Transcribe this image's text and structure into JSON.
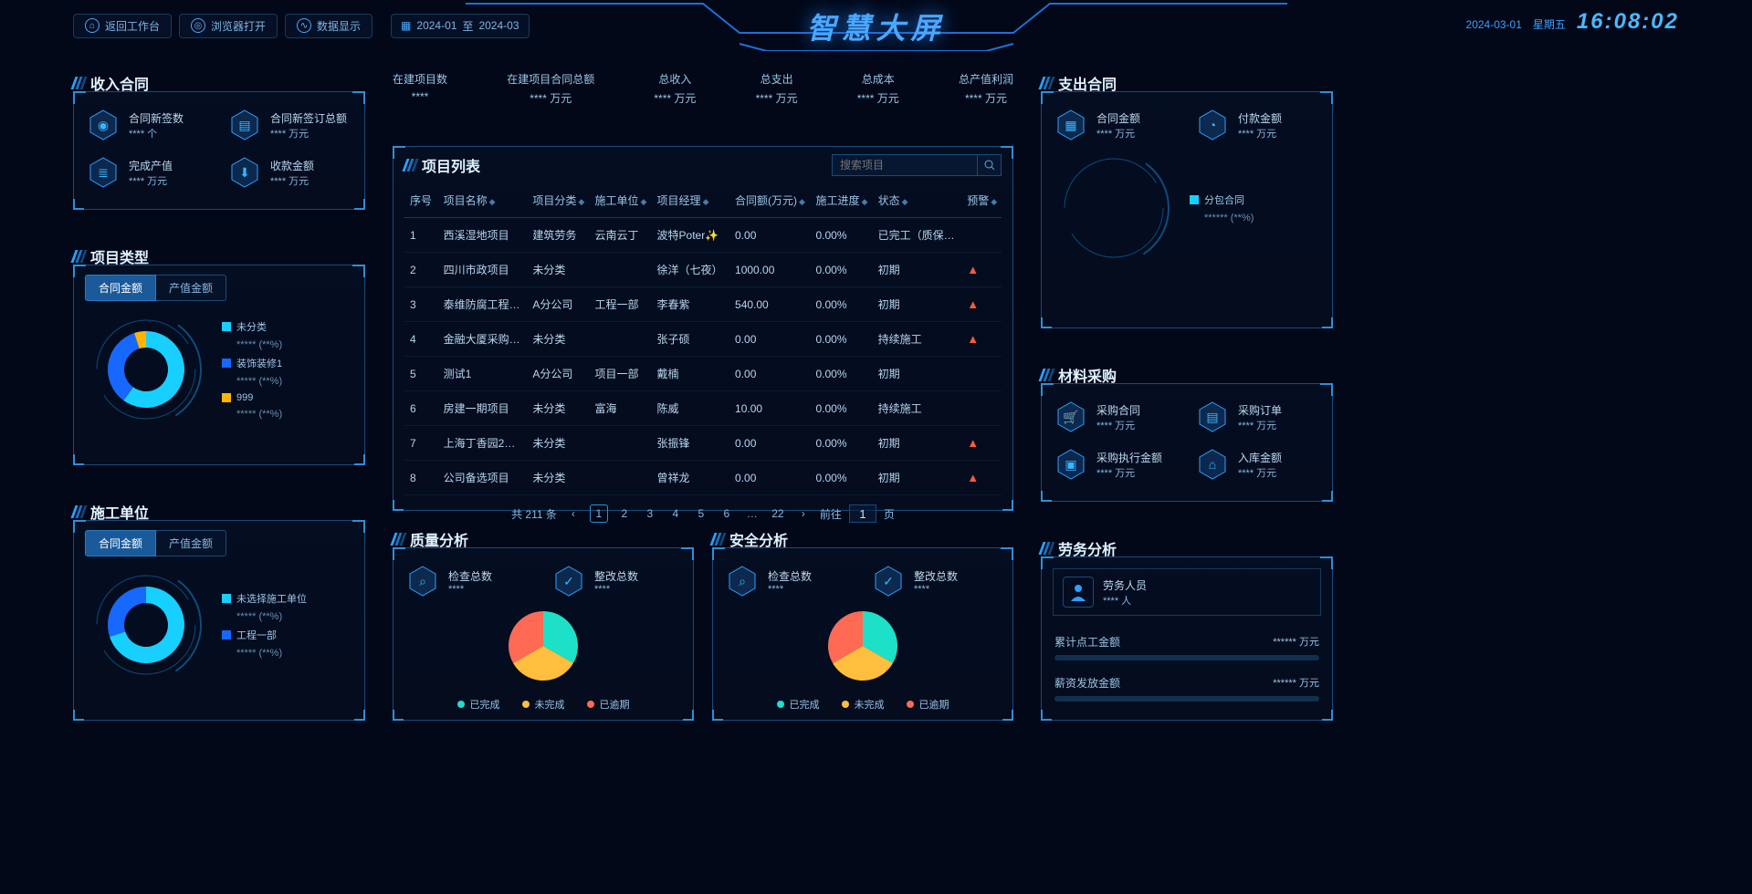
{
  "header": {
    "buttons": [
      {
        "icon": "home-icon",
        "label": "返回工作台"
      },
      {
        "icon": "globe-icon",
        "label": "浏览器打开"
      },
      {
        "icon": "data-icon",
        "label": "数据显示"
      }
    ],
    "date_from": "2024-01",
    "date_sep": "至",
    "date_to": "2024-03",
    "title": "智慧大屏",
    "date": "2024-03-01",
    "weekday": "星期五",
    "time": "16:08:02"
  },
  "summary_row": [
    {
      "label": "在建项目数",
      "value": "****"
    },
    {
      "label": "在建项目合同总额",
      "value": "**** 万元"
    },
    {
      "label": "总收入",
      "value": "**** 万元"
    },
    {
      "label": "总支出",
      "value": "**** 万元"
    },
    {
      "label": "总成本",
      "value": "**** 万元"
    },
    {
      "label": "总产值利润",
      "value": "**** 万元"
    }
  ],
  "income_panel": {
    "title": "收入合同",
    "tiles": [
      {
        "icon": "shield-icon",
        "label": "合同新签数",
        "value": "**** 个"
      },
      {
        "icon": "doc-icon",
        "label": "合同新签订总额",
        "value": "**** 万元"
      },
      {
        "icon": "stack-icon",
        "label": "完成产值",
        "value": "**** 万元"
      },
      {
        "icon": "download-icon",
        "label": "收款金额",
        "value": "**** 万元"
      }
    ]
  },
  "project_type_panel": {
    "title": "项目类型",
    "tabs": [
      "合同金额",
      "产值金额"
    ],
    "active_tab": 0,
    "donut": {
      "colors": [
        "#17d0ff",
        "#1668ff",
        "#ffb400"
      ],
      "values": [
        60,
        35,
        5
      ],
      "ring_color": "#0e4b7a",
      "inner_bg": "#051428"
    },
    "legend": [
      {
        "color": "#17d0ff",
        "label": "未分类",
        "sub": "*****  (**%)"
      },
      {
        "color": "#1668ff",
        "label": "装饰装修1",
        "sub": "*****  (**%)"
      },
      {
        "color": "#ffb400",
        "label": "999",
        "sub": "*****  (**%)"
      }
    ]
  },
  "construct_unit_panel": {
    "title": "施工单位",
    "tabs": [
      "合同金额",
      "产值金额"
    ],
    "active_tab": 0,
    "donut": {
      "colors": [
        "#17d0ff",
        "#1668ff"
      ],
      "values": [
        70,
        30
      ],
      "ring_color": "#0e4b7a",
      "inner_bg": "#051428"
    },
    "legend": [
      {
        "color": "#17d0ff",
        "label": "未选择施工单位",
        "sub": "*****  (**%)"
      },
      {
        "color": "#1668ff",
        "label": "工程一部",
        "sub": "*****  (**%)"
      }
    ]
  },
  "project_list": {
    "title": "项目列表",
    "search_placeholder": "搜索项目",
    "columns": [
      "序号",
      "项目名称",
      "项目分类",
      "施工单位",
      "项目经理",
      "合同额(万元)",
      "施工进度",
      "状态",
      "预警"
    ],
    "rows": [
      [
        "1",
        "西溪湿地项目",
        "建筑劳务",
        "云南云丁",
        "波特Poter✨",
        "0.00",
        "0.00%",
        "已完工（质保…",
        ""
      ],
      [
        "2",
        "四川市政项目",
        "未分类",
        "",
        "徐洋（七夜）",
        "1000.00",
        "0.00%",
        "初期",
        "warn"
      ],
      [
        "3",
        "泰维防腐工程…",
        "A分公司",
        "工程一部",
        "李春紫",
        "540.00",
        "0.00%",
        "初期",
        "warn"
      ],
      [
        "4",
        "金融大厦采购…",
        "未分类",
        "",
        "张子硕",
        "0.00",
        "0.00%",
        "持续施工",
        "warn"
      ],
      [
        "5",
        "测试1",
        "A分公司",
        "项目一部",
        "戴楠",
        "0.00",
        "0.00%",
        "初期",
        ""
      ],
      [
        "6",
        "房建一期项目",
        "未分类",
        "富海",
        "陈威",
        "10.00",
        "0.00%",
        "持续施工",
        ""
      ],
      [
        "7",
        "上海丁香园2…",
        "未分类",
        "",
        "张振锋",
        "0.00",
        "0.00%",
        "初期",
        "warn"
      ],
      [
        "8",
        "公司备选项目",
        "未分类",
        "",
        "曾祥龙",
        "0.00",
        "0.00%",
        "初期",
        "warn"
      ]
    ],
    "total_label": "共 211 条",
    "pages": [
      "1",
      "2",
      "3",
      "4",
      "5",
      "6",
      "…",
      "22"
    ],
    "current_page": "1",
    "goto_label_pre": "前往",
    "goto_label_post": "页"
  },
  "expense_panel": {
    "title": "支出合同",
    "tiles": [
      {
        "icon": "doc2-icon",
        "label": "合同金额",
        "value": "**** 万元"
      },
      {
        "icon": "pay-icon",
        "label": "付款金额",
        "value": "**** 万元"
      }
    ],
    "donut": {
      "colors": [
        "#17d0ff"
      ],
      "values": [
        100
      ],
      "ring_color": "#0e4b7a",
      "inner_bg": "#051428"
    },
    "legend": [
      {
        "color": "#17d0ff",
        "label": "分包合同",
        "sub": "******  (**%)"
      }
    ]
  },
  "material_panel": {
    "title": "材料采购",
    "tiles": [
      {
        "icon": "cart-icon",
        "label": "采购合同",
        "value": "**** 万元"
      },
      {
        "icon": "order-icon",
        "label": "采购订单",
        "value": "**** 万元"
      },
      {
        "icon": "bag-icon",
        "label": "采购执行金额",
        "value": "**** 万元"
      },
      {
        "icon": "in-icon",
        "label": "入库金额",
        "value": "**** 万元"
      }
    ]
  },
  "quality_panel": {
    "title": "质量分析",
    "tiles": [
      {
        "icon": "search2-icon",
        "label": "检查总数",
        "value": "****"
      },
      {
        "icon": "fix-icon",
        "label": "整改总数",
        "value": "****"
      }
    ],
    "pie": {
      "colors": [
        "#1de0c8",
        "#ffbe3d",
        "#ff6a55"
      ],
      "values": [
        33.3,
        33.3,
        33.4
      ],
      "labels": [
        "已完成",
        "未完成",
        "已逾期"
      ]
    }
  },
  "safety_panel": {
    "title": "安全分析",
    "tiles": [
      {
        "icon": "search2-icon",
        "label": "检查总数",
        "value": "****"
      },
      {
        "icon": "fix-icon",
        "label": "整改总数",
        "value": "****"
      }
    ],
    "pie": {
      "colors": [
        "#1de0c8",
        "#ffbe3d",
        "#ff6a55"
      ],
      "values": [
        33.3,
        33.3,
        33.4
      ],
      "labels": [
        "已完成",
        "未完成",
        "已逾期"
      ]
    }
  },
  "labor_panel": {
    "title": "劳务分析",
    "person_label": "劳务人员",
    "person_value": "**** 人",
    "bars": [
      {
        "label": "累计点工金额",
        "value": "****** 万元"
      },
      {
        "label": "薪资发放金额",
        "value": "****** 万元"
      }
    ]
  },
  "style": {
    "accent": "#2e9fff",
    "warn_color": "#ff5a3c"
  }
}
